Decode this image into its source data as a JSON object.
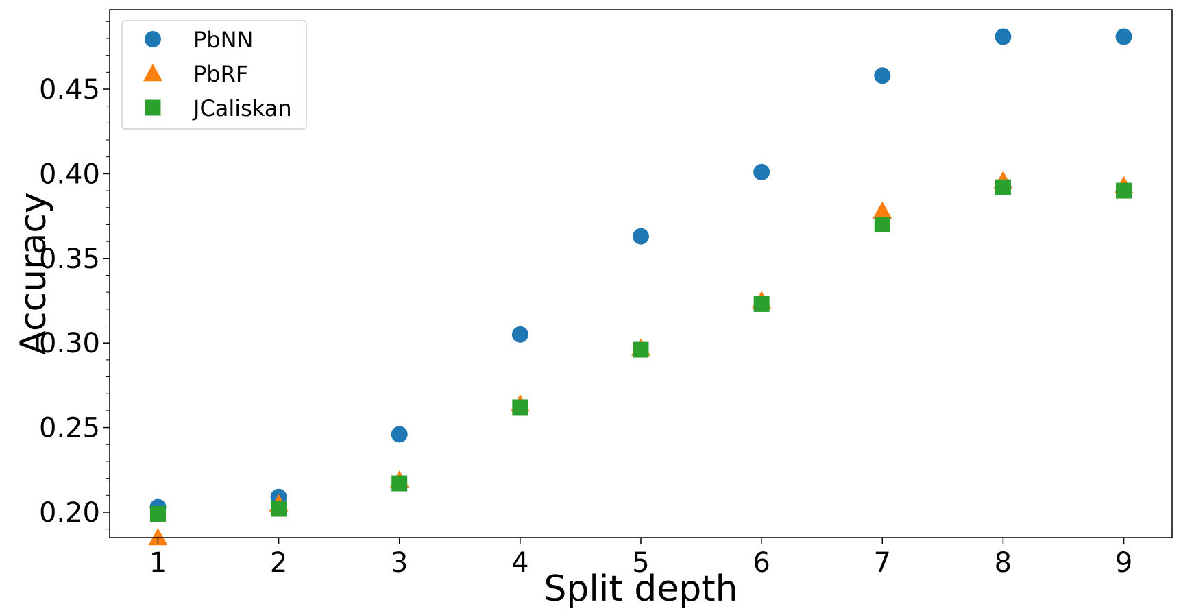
{
  "chart_data": {
    "type": "scatter",
    "title": "",
    "xlabel": "Split depth",
    "ylabel": "Accuracy",
    "xlim": [
      0.6,
      9.4
    ],
    "ylim": [
      0.185,
      0.497
    ],
    "xticks": [
      1,
      2,
      3,
      4,
      5,
      6,
      7,
      8,
      9
    ],
    "xtick_labels": [
      "1",
      "2",
      "3",
      "4",
      "5",
      "6",
      "7",
      "8",
      "9"
    ],
    "yticks": [
      0.2,
      0.25,
      0.3,
      0.35,
      0.4,
      0.45
    ],
    "ytick_labels": [
      "0.20",
      "0.25",
      "0.30",
      "0.35",
      "0.40",
      "0.45"
    ],
    "grid": false,
    "legend_position": "top-left",
    "x": [
      1,
      2,
      3,
      4,
      5,
      6,
      7,
      8,
      9
    ],
    "series": [
      {
        "name": "PbNN",
        "marker": "circle",
        "color": "#1f77b4",
        "values": [
          0.203,
          0.209,
          0.246,
          0.305,
          0.363,
          0.401,
          0.458,
          0.481,
          0.481
        ]
      },
      {
        "name": "PbRF",
        "marker": "triangle",
        "color": "#ff7f0e",
        "values": [
          0.185,
          0.205,
          0.219,
          0.264,
          0.297,
          0.325,
          0.378,
          0.396,
          0.393
        ]
      },
      {
        "name": "JCaliskan",
        "marker": "square",
        "color": "#2ca02c",
        "values": [
          0.199,
          0.202,
          0.217,
          0.262,
          0.296,
          0.323,
          0.37,
          0.392,
          0.39
        ]
      }
    ]
  }
}
